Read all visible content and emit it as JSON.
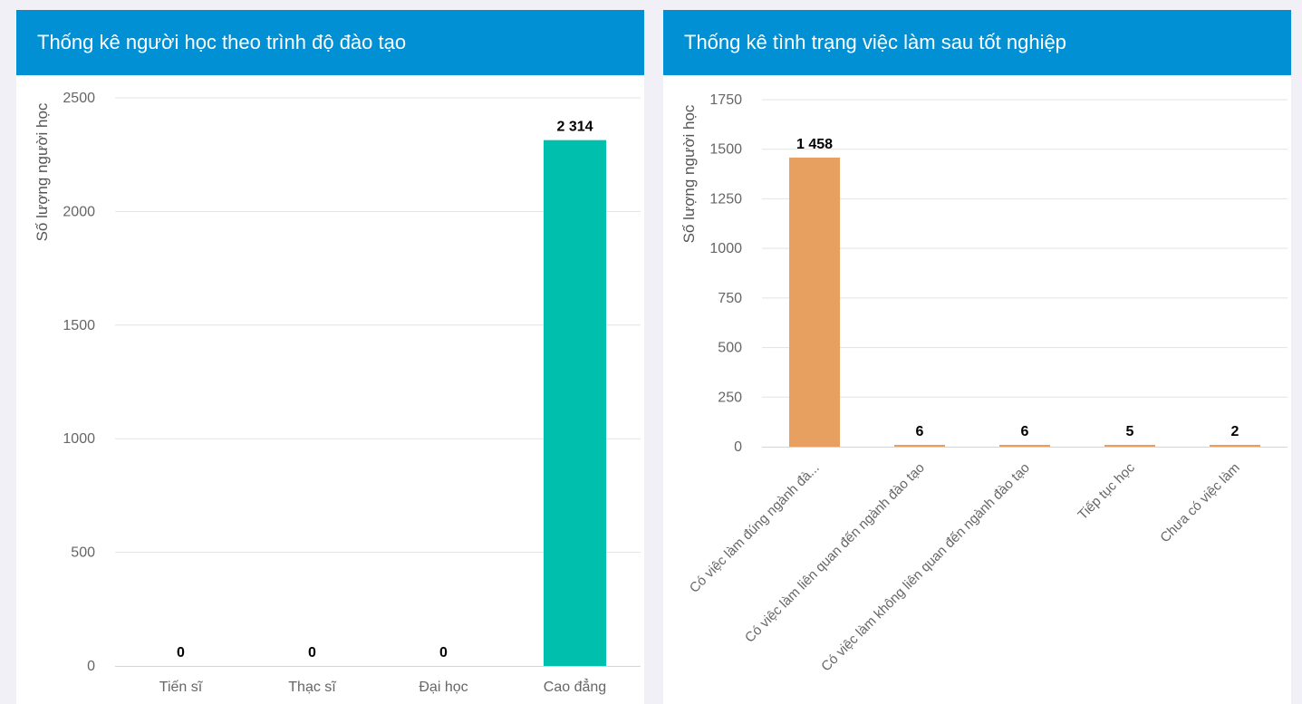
{
  "chart_data": [
    {
      "type": "bar",
      "title": "Thống kê người học theo trình độ đào tạo",
      "ylabel": "Số lượng người học",
      "xlabel": "",
      "categories": [
        "Tiến sĩ",
        "Thạc sĩ",
        "Đại học",
        "Cao đẳng"
      ],
      "values": [
        0,
        0,
        0,
        2314
      ],
      "value_labels": [
        "0",
        "0",
        "0",
        "2 314"
      ],
      "ylim": [
        0,
        2500
      ],
      "yticks": [
        0,
        500,
        1000,
        1500,
        2000,
        2500
      ],
      "grid": true,
      "bar_colors": [
        "#00bfad",
        "#00bfad",
        "#00bfad",
        "#00bfad"
      ]
    },
    {
      "type": "bar",
      "title": "Thống kê tình trạng việc làm sau tốt nghiệp",
      "ylabel": "Số lượng người học",
      "xlabel": "",
      "categories": [
        "Có việc làm đúng ngành đà...",
        "Có việc làm liên quan đến ngành đào tạo",
        "Có việc làm không liên quan đến ngành đào tạo",
        "Tiếp tục học",
        "Chưa có việc làm"
      ],
      "values": [
        1458,
        6,
        6,
        5,
        2
      ],
      "value_labels": [
        "1 458",
        "6",
        "6",
        "5",
        "2"
      ],
      "ylim": [
        0,
        1750
      ],
      "yticks": [
        0,
        250,
        500,
        750,
        1000,
        1250,
        1500,
        1750
      ],
      "grid": true,
      "bar_colors": [
        "#e8a060",
        "#e8a060",
        "#e8a060",
        "#e8a060",
        "#e8a060"
      ]
    }
  ],
  "colors": {
    "header_bg": "#0290d5",
    "header_text": "#ffffff",
    "page_bg": "#f1f0f7",
    "grid": "#e3e3e3"
  }
}
